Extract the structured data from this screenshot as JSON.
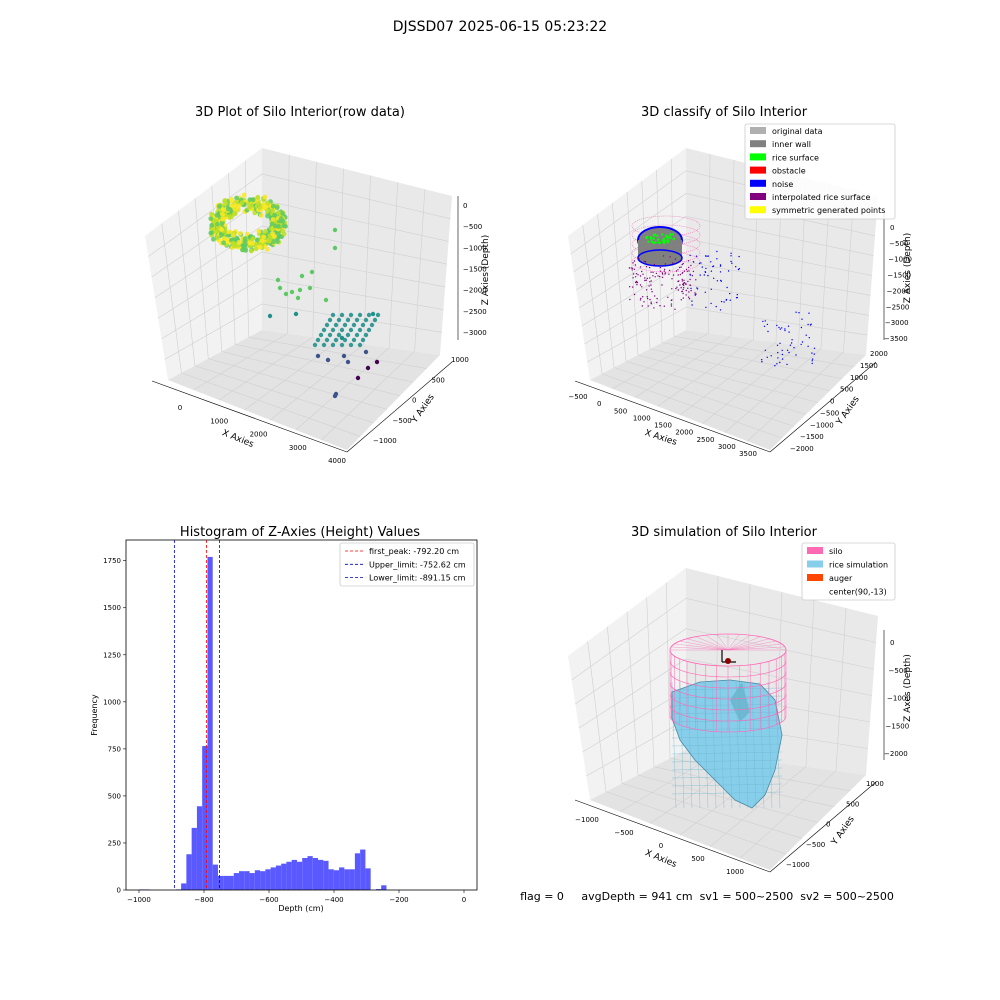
{
  "suptitle": "DJSSD07 2025-06-15 05:23:22",
  "footer": "flag = 0     avgDepth = 941 cm  sv1 = 500~2500  sv2 = 500~2500",
  "colors": {
    "hist_bar": "#5050ff",
    "first_peak_line": "#ff0000",
    "limit_line": "#0000cc",
    "pane": "#f2f2f2",
    "grid": "#d0d0d0",
    "silo": "#ff69b4",
    "rice_simulation": "#87ceeb",
    "auger": "#ff4500",
    "inner_wall": "#808080",
    "rice_surface": "#00ff00",
    "obstacle": "#ff0000",
    "noise": "#0000ff",
    "interpolated_rice_surface": "#800080",
    "symmetric_generated_points": "#ffff00",
    "original_data": "#b0b0b0"
  },
  "chart_data": [
    {
      "type": "scatter",
      "subtype": "3d",
      "title": "3D Plot of Silo Interior(row data)",
      "xlabel": "X Axies",
      "ylabel": "Y Axies",
      "zlabel": "Z Axies (Depth)",
      "xlim": [
        -500,
        4000
      ],
      "ylim": [
        -1200,
        1200
      ],
      "zlim": [
        -3200,
        200
      ],
      "x_ticks": [
        "0",
        "1000",
        "2000",
        "3000",
        "4000"
      ],
      "y_ticks": [
        "1000",
        "500",
        "0",
        "−500",
        "−1000"
      ],
      "z_ticks": [
        "0",
        "−500",
        "−1000",
        "−1500",
        "−2000",
        "−2500",
        "−3000"
      ],
      "colormap": "viridis (by depth)",
      "clusters": [
        {
          "x": 0,
          "y": 0,
          "z": -800,
          "label": "ring of points near silo center"
        },
        {
          "x": 800,
          "y": 100,
          "z": -1800,
          "label": "scattered points"
        },
        {
          "x": 2500,
          "y": 0,
          "z": -2700,
          "label": "far scattered points"
        }
      ]
    },
    {
      "type": "scatter",
      "subtype": "3d",
      "title": "3D classify of Silo Interior",
      "xlabel": "X Axies",
      "ylabel": "Y Axies",
      "zlabel": "Z Axies (Depth)",
      "xlim": [
        -500,
        3600
      ],
      "ylim": [
        -2000,
        2000
      ],
      "zlim": [
        -3500,
        0
      ],
      "x_ticks": [
        "−500",
        "0",
        "500",
        "1000",
        "1500",
        "2000",
        "2500",
        "3000",
        "3500"
      ],
      "y_ticks": [
        "2000",
        "1500",
        "1000",
        "500",
        "0",
        "−500",
        "−1000",
        "−1500",
        "−2000"
      ],
      "z_ticks": [
        "0",
        "−500",
        "−1000",
        "−1500",
        "−2000",
        "−2500",
        "−3000",
        "−3500"
      ],
      "legend_position": "top-right",
      "legend": [
        {
          "label": "original data",
          "color": "#b0b0b0"
        },
        {
          "label": "inner wall",
          "color": "#808080"
        },
        {
          "label": "rice surface",
          "color": "#00ff00"
        },
        {
          "label": "obstacle",
          "color": "#ff0000"
        },
        {
          "label": "noise",
          "color": "#0000ff"
        },
        {
          "label": "interpolated rice surface",
          "color": "#800080"
        },
        {
          "label": "symmetric generated points",
          "color": "#ffff00"
        }
      ]
    },
    {
      "type": "bar",
      "subtype": "histogram",
      "title": "Histogram of Z-Axies (Height) Values",
      "xlabel": "Depth (cm)",
      "ylabel": "Frequency",
      "xlim": [
        -1040,
        40
      ],
      "ylim": [
        0,
        1860
      ],
      "x_ticks": [
        -1000,
        -800,
        -600,
        -400,
        -200,
        0
      ],
      "x_tick_labels": [
        "−1000",
        "−800",
        "−600",
        "−400",
        "−200",
        "0"
      ],
      "y_ticks": [
        0,
        250,
        500,
        750,
        1000,
        1250,
        1500,
        1750
      ],
      "bin_width": 16.2,
      "bin_start": -1000,
      "values": [
        3,
        3,
        0,
        0,
        0,
        0,
        0,
        3,
        35,
        190,
        330,
        445,
        765,
        1770,
        135,
        75,
        75,
        75,
        90,
        100,
        100,
        90,
        105,
        100,
        110,
        120,
        130,
        140,
        150,
        160,
        150,
        170,
        180,
        170,
        160,
        155,
        110,
        105,
        120,
        110,
        110,
        195,
        215,
        115,
        0,
        5,
        25
      ],
      "lines": [
        {
          "label": "first_peak: -792.20 cm",
          "x": -792.2,
          "color": "#ff0000"
        },
        {
          "label": "Upper_limit: -752.62 cm",
          "x": -752.62,
          "color": "#0000cc"
        },
        {
          "label": "Lower_limit: -891.15 cm",
          "x": -891.15,
          "color": "#0000cc"
        }
      ],
      "legend_position": "top-right"
    },
    {
      "type": "surface",
      "subtype": "3d",
      "title": "3D simulation of Silo Interior",
      "xlabel": "X Axies",
      "ylabel": "Y Axies",
      "zlabel": "Z Axes (Depth)",
      "xlim": [
        -1200,
        1200
      ],
      "ylim": [
        -1200,
        1200
      ],
      "zlim": [
        -2100,
        300
      ],
      "x_ticks": [
        "−1000",
        "−500",
        "0",
        "500",
        "1000"
      ],
      "y_ticks": [
        "1000",
        "500",
        "0",
        "−500",
        "−1000"
      ],
      "z_ticks": [
        "0",
        "−500",
        "−1000",
        "−1500",
        "−2000"
      ],
      "legend_position": "top-right",
      "legend": [
        {
          "label": "silo",
          "color": "#ff69b4"
        },
        {
          "label": "rice simulation",
          "color": "#87ceeb"
        },
        {
          "label": "auger",
          "color": "#ff4500"
        },
        {
          "label": "center(90,-13)",
          "color": ""
        }
      ]
    }
  ]
}
